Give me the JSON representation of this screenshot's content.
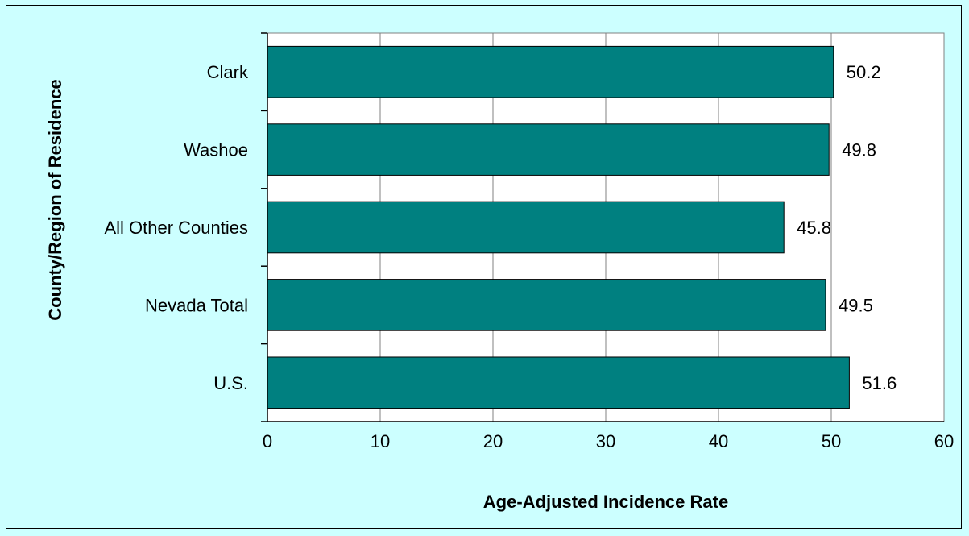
{
  "chart_data": {
    "type": "bar",
    "orientation": "horizontal",
    "categories": [
      "Clark",
      "Washoe",
      "All Other Counties",
      "Nevada Total",
      "U.S."
    ],
    "values": [
      50.2,
      49.8,
      45.8,
      49.5,
      51.6
    ],
    "data_labels": [
      "50.2",
      "49.8",
      "45.8",
      "49.5",
      "51.6"
    ],
    "xlabel": "Age-Adjusted Incidence Rate",
    "ylabel": "County/Region of Residence",
    "xlim": [
      0,
      60
    ],
    "x_ticks": [
      "0",
      "10",
      "20",
      "30",
      "40",
      "50",
      "60"
    ],
    "grid": true,
    "bar_color": "#008080",
    "plot_background": "#ffffff",
    "chart_background": "#ccffff"
  }
}
